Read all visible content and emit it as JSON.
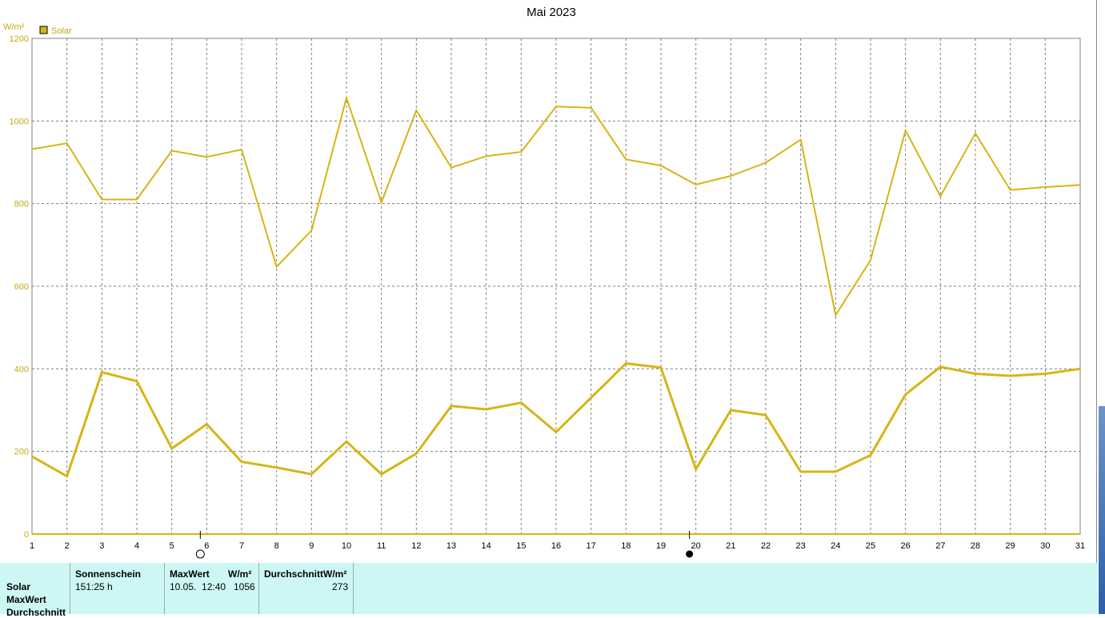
{
  "chart_data": {
    "type": "line",
    "title": "Mai 2023",
    "ylabel": "W/m²",
    "legend": [
      "Solar"
    ],
    "legend_position": "top-left",
    "color": "#d6b515",
    "grid": true,
    "ylim": [
      0,
      1200
    ],
    "yticks": [
      "0",
      "200",
      "400",
      "600",
      "800",
      "1000",
      "1200"
    ],
    "x": [
      "1",
      "2",
      "3",
      "4",
      "5",
      "6",
      "7",
      "8",
      "9",
      "10",
      "11",
      "12",
      "13",
      "14",
      "15",
      "16",
      "17",
      "18",
      "19",
      "20",
      "21",
      "22",
      "23",
      "24",
      "25",
      "26",
      "27",
      "28",
      "29",
      "30",
      "31"
    ],
    "series": [
      {
        "values": [
          932,
          946,
          810,
          810,
          928,
          913,
          931,
          647,
          735,
          1056,
          803,
          1026,
          887,
          915,
          925,
          1035,
          1032,
          907,
          892,
          846,
          867,
          899,
          955,
          530,
          663,
          977,
          818,
          970,
          833,
          840,
          845
        ]
      },
      {
        "values": [
          188,
          140,
          392,
          370,
          207,
          266,
          175,
          161,
          145,
          224,
          145,
          195,
          310,
          302,
          318,
          247,
          330,
          413,
          403,
          157,
          300,
          288,
          151,
          151,
          191,
          338,
          405,
          388,
          383,
          388,
          400
        ]
      }
    ],
    "moon_markers": [
      {
        "day": "6",
        "phase": "full"
      },
      {
        "day": "20",
        "phase": "new"
      }
    ]
  },
  "stats": {
    "row_labels": [
      "Solar",
      "MaxWert",
      "Durchschnitt"
    ],
    "sunshine_header": "Sonnenschein",
    "sunshine_value": "151:25 h",
    "max_header": "MaxWert",
    "max_unit": "W/m²",
    "max_time": "10.05.  12:40",
    "max_value": "1056",
    "avg_header": "DurchschnittW/m²",
    "avg_value": "273"
  }
}
